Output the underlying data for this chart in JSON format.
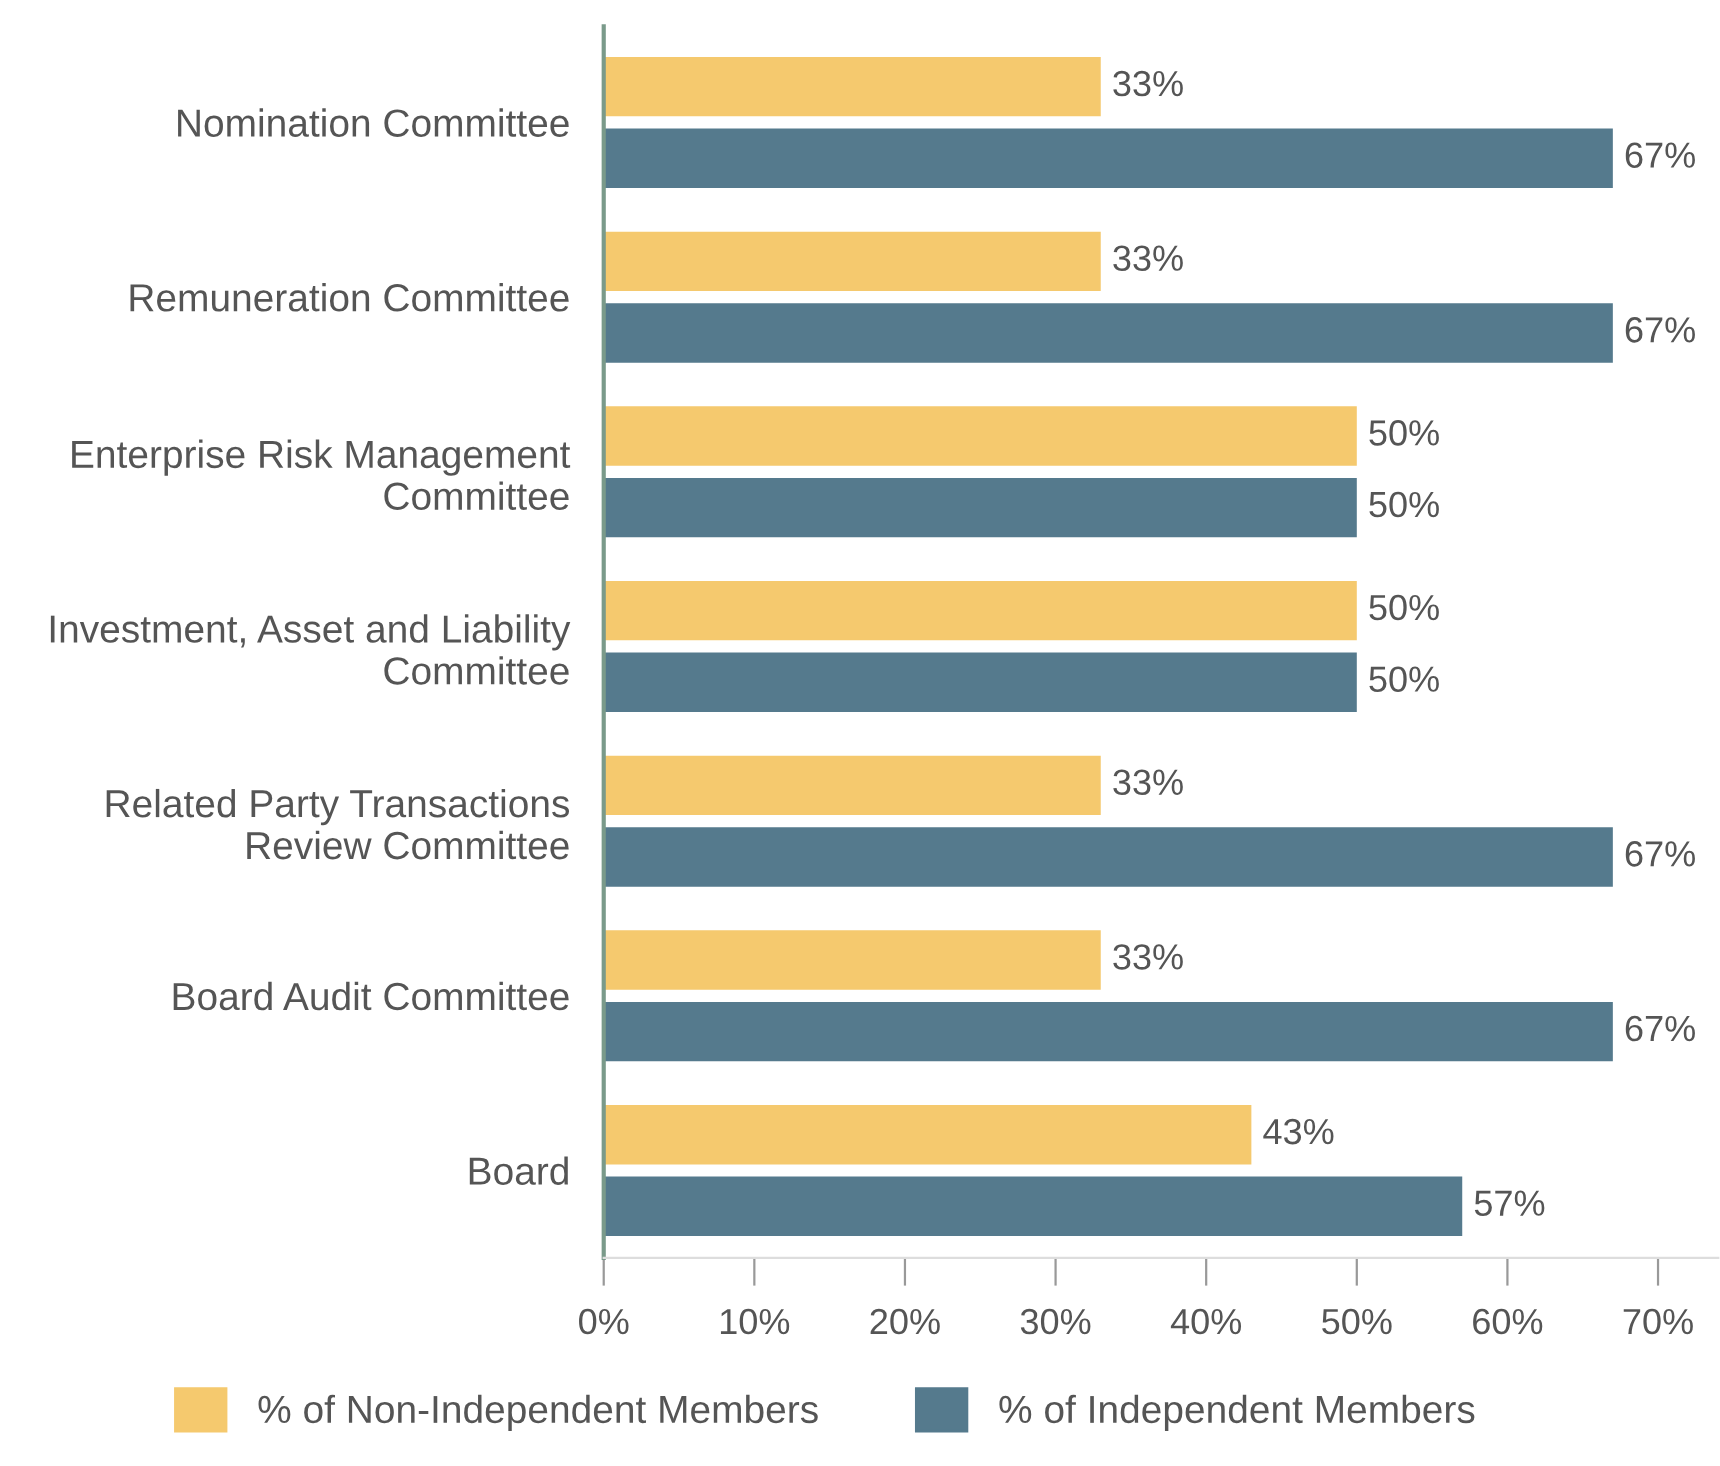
{
  "chart_data": {
    "type": "bar",
    "orientation": "horizontal",
    "categories": [
      "Nomination Committee",
      "Remuneration Committee",
      "Enterprise Risk Management\nCommittee",
      "Investment, Asset and Liability\nCommittee",
      "Related Party Transactions\nReview Committee",
      "Board Audit Committee",
      "Board"
    ],
    "series": [
      {
        "name": "% of Non-Independent Members",
        "color": "#f5c96e",
        "values": [
          33,
          33,
          50,
          50,
          33,
          33,
          43
        ],
        "value_labels": [
          "33%",
          "33%",
          "50%",
          "50%",
          "33%",
          "33%",
          "43%"
        ]
      },
      {
        "name": "% of Independent Members",
        "color": "#557a8d",
        "values": [
          67,
          67,
          50,
          50,
          67,
          67,
          57
        ],
        "value_labels": [
          "67%",
          "67%",
          "50%",
          "50%",
          "67%",
          "67%",
          "57%"
        ]
      }
    ],
    "xlim": [
      0,
      74
    ],
    "xticks": [
      {
        "value": 0,
        "label": "0%"
      },
      {
        "value": 10,
        "label": "10%"
      },
      {
        "value": 20,
        "label": "20%"
      },
      {
        "value": 30,
        "label": "30%"
      },
      {
        "value": 40,
        "label": "40%"
      },
      {
        "value": 50,
        "label": "50%"
      },
      {
        "value": 60,
        "label": "60%"
      },
      {
        "value": 70,
        "label": "70%"
      }
    ],
    "grid": false,
    "legend": "bottom"
  }
}
